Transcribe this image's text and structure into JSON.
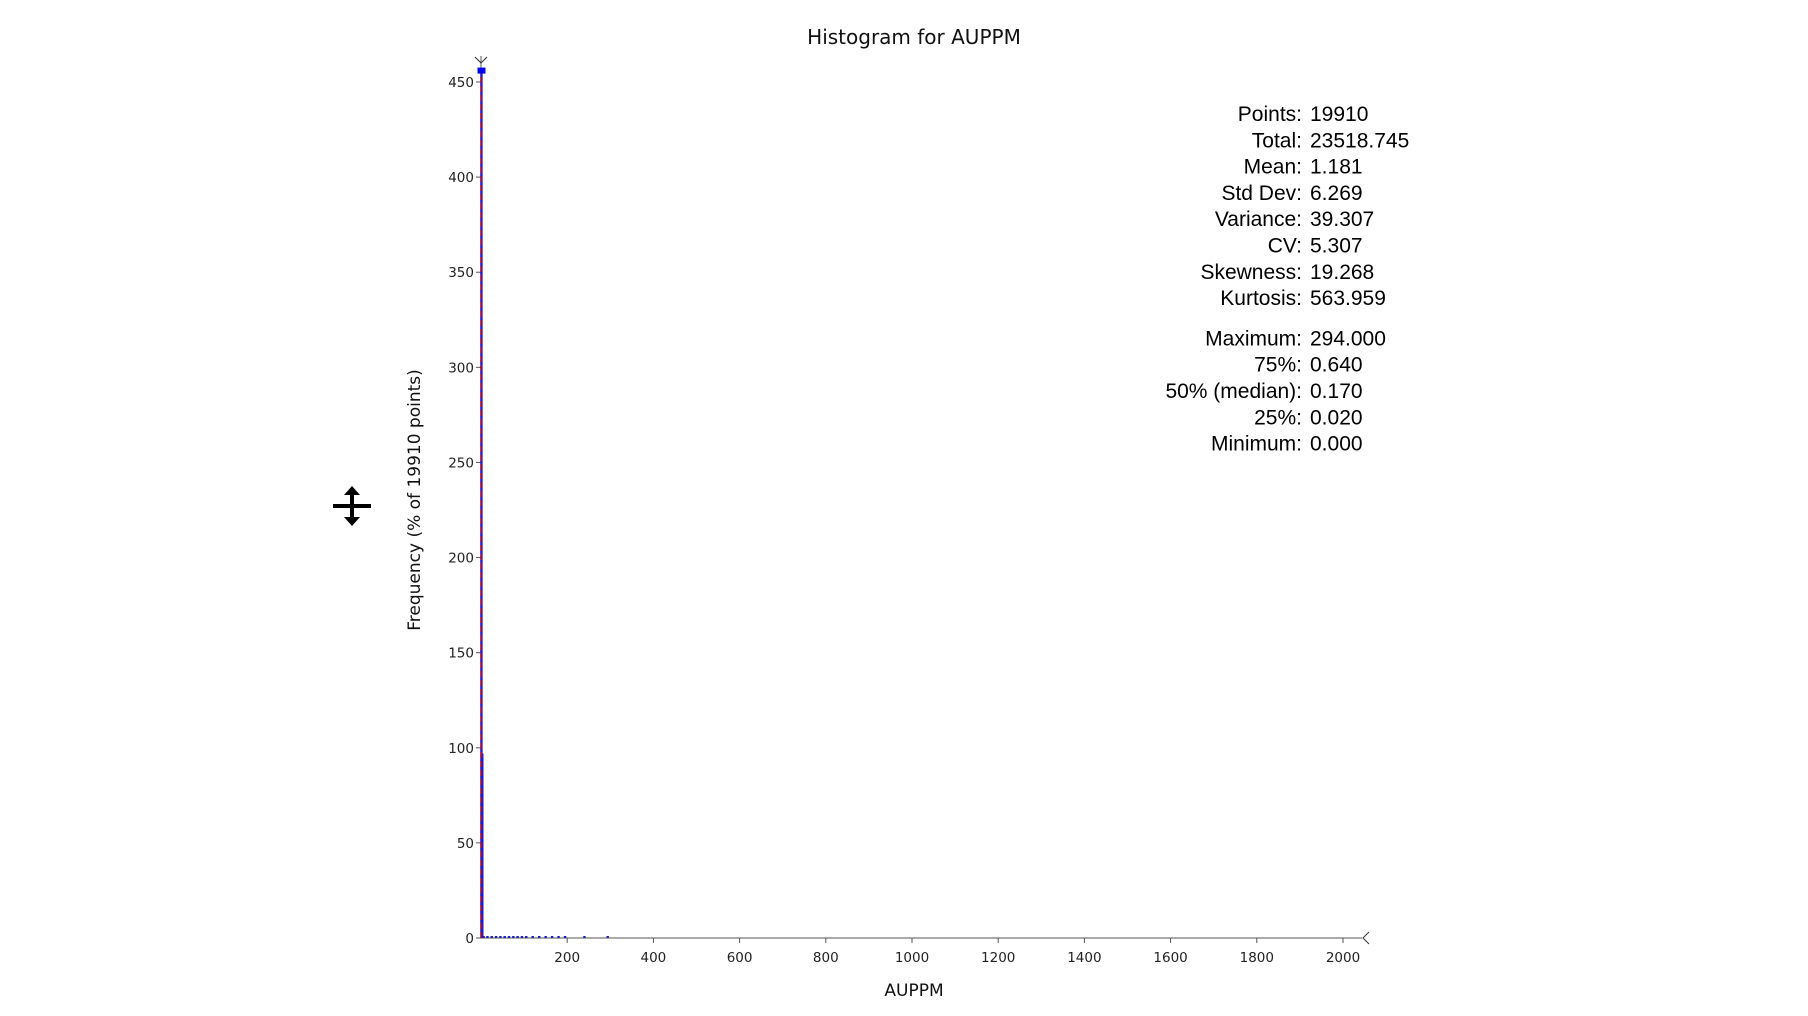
{
  "chart_data": {
    "type": "histogram",
    "title": "Histogram for AUPPM",
    "xlabel": "AUPPM",
    "ylabel": "Frequency (% of 19910 points)",
    "xlim": [
      0,
      2000
    ],
    "ylim": [
      0,
      450
    ],
    "xticks": [
      200,
      400,
      600,
      800,
      1000,
      1200,
      1400,
      1600,
      1800,
      2000
    ],
    "yticks": [
      0,
      50,
      100,
      150,
      200,
      250,
      300,
      350,
      400,
      450
    ],
    "bars": [
      {
        "x": 1,
        "y": 456
      },
      {
        "x": 3,
        "y": 97
      },
      {
        "x": 6,
        "y": 1
      },
      {
        "x": 15,
        "y": 1
      },
      {
        "x": 25,
        "y": 1
      },
      {
        "x": 35,
        "y": 1
      },
      {
        "x": 45,
        "y": 1
      },
      {
        "x": 55,
        "y": 1
      },
      {
        "x": 65,
        "y": 1
      },
      {
        "x": 75,
        "y": 1
      },
      {
        "x": 85,
        "y": 1
      },
      {
        "x": 95,
        "y": 1
      },
      {
        "x": 105,
        "y": 1
      },
      {
        "x": 120,
        "y": 1
      },
      {
        "x": 135,
        "y": 1
      },
      {
        "x": 150,
        "y": 1
      },
      {
        "x": 165,
        "y": 1
      },
      {
        "x": 180,
        "y": 1
      },
      {
        "x": 195,
        "y": 1
      },
      {
        "x": 240,
        "y": 1
      },
      {
        "x": 294,
        "y": 1
      }
    ],
    "mean_line": 1.181,
    "colors": {
      "bars": "#1a1acc",
      "mean": "#cc0000",
      "highlight": "#0000ee",
      "axis": "#555555"
    }
  },
  "stats": [
    {
      "label": "Points:",
      "value": "19910",
      "color": "#000000"
    },
    {
      "label": "Total:",
      "value": "23518.745",
      "color": "#000000"
    },
    {
      "label": "Mean:",
      "value": "1.181",
      "color": "#e00000"
    },
    {
      "label": "Std Dev:",
      "value": "6.269",
      "color": "#000000"
    },
    {
      "label": "Variance:",
      "value": "39.307",
      "color": "#000000"
    },
    {
      "label": "CV:",
      "value": "5.307",
      "color": "#000000"
    },
    {
      "label": "Skewness:",
      "value": "19.268",
      "color": "#000000"
    },
    {
      "label": "Kurtosis:",
      "value": "563.959",
      "color": "#000000"
    },
    {
      "label": "Maximum:",
      "value": "294.000",
      "color": "#000000"
    },
    {
      "label": "75%:",
      "value": "0.640",
      "color": "#0000ee"
    },
    {
      "label": "50% (median):",
      "value": "0.170",
      "color": "#0000ee"
    },
    {
      "label": "25%:",
      "value": "0.020",
      "color": "#0000ee"
    },
    {
      "label": "Minimum:",
      "value": "0.000",
      "color": "#000000"
    }
  ]
}
